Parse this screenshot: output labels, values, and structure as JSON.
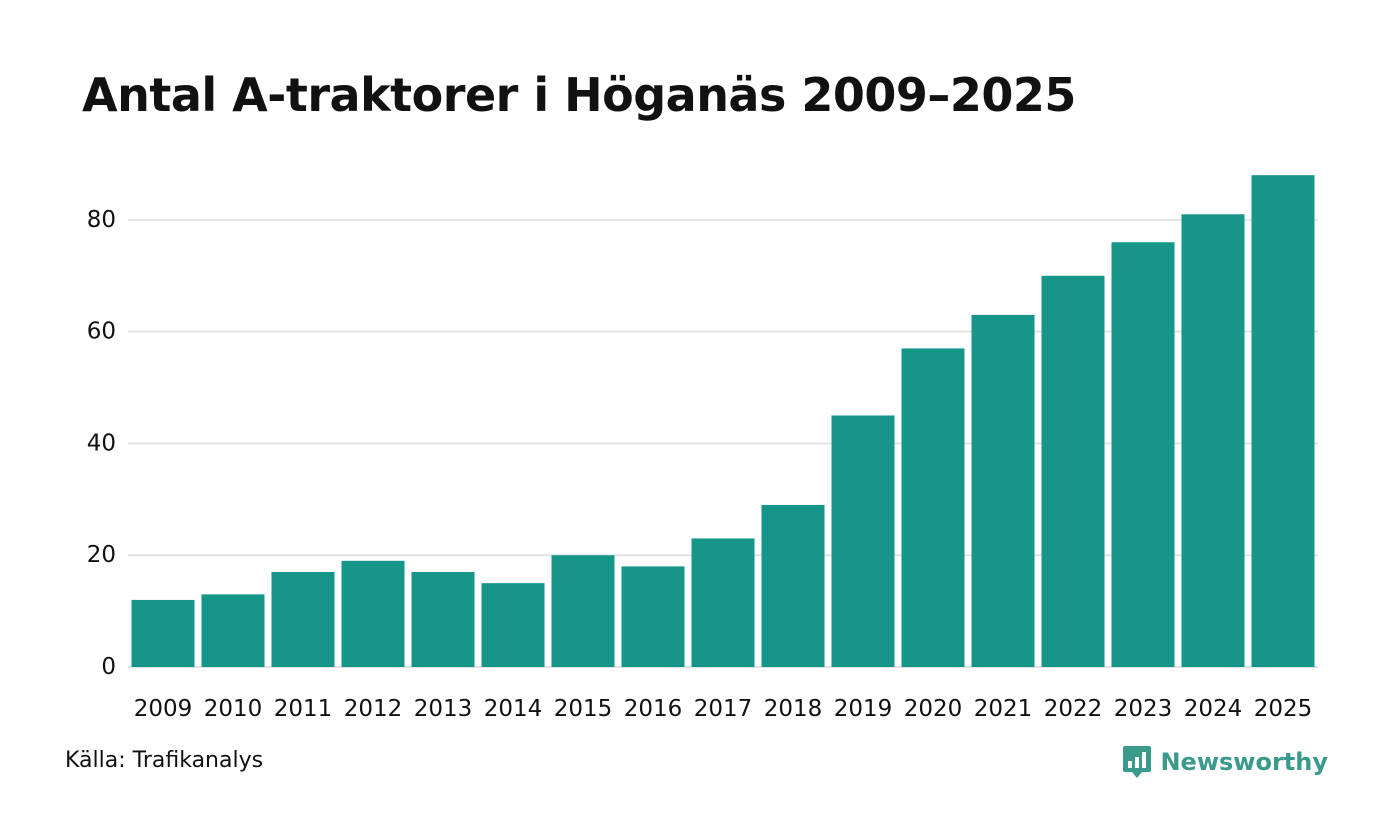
{
  "chart_data": {
    "type": "bar",
    "title": "Antal A-traktorer i Höganäs 2009–2025",
    "xlabel": "",
    "ylabel": "",
    "categories": [
      "2009",
      "2010",
      "2011",
      "2012",
      "2013",
      "2014",
      "2015",
      "2016",
      "2017",
      "2018",
      "2019",
      "2020",
      "2021",
      "2022",
      "2023",
      "2024",
      "2025"
    ],
    "values": [
      12,
      13,
      17,
      19,
      17,
      15,
      20,
      18,
      23,
      29,
      45,
      57,
      63,
      70,
      76,
      81,
      88
    ],
    "ylim": [
      0,
      90
    ],
    "yticks": [
      0,
      20,
      40,
      60,
      80
    ],
    "grid": true,
    "bar_color": "#159688",
    "grid_color": "#e3e3e3"
  },
  "footer": {
    "source": "Källa: Trafikanalys",
    "brand": "Newsworthy",
    "brand_icon": "bar-chart-speech-bubble-icon",
    "brand_color": "#3a9a8c"
  }
}
